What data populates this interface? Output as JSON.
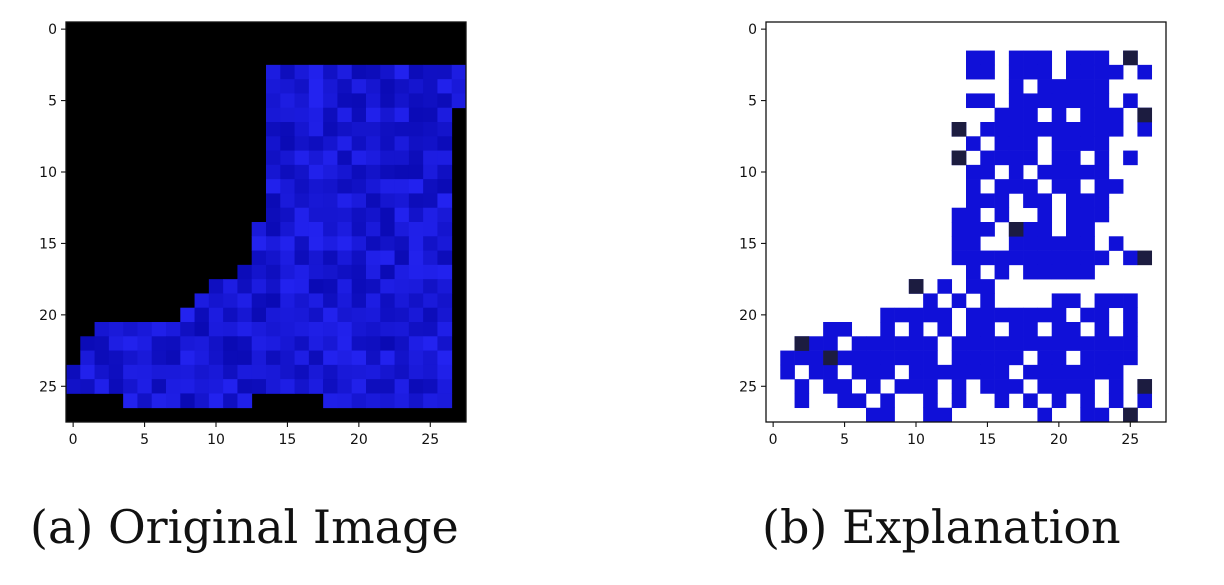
{
  "chart_data": [
    {
      "type": "heatmap",
      "caption": "(a) Original Image",
      "grid_size": 28,
      "xticks": [
        0,
        5,
        10,
        15,
        20,
        25
      ],
      "yticks": [
        0,
        5,
        10,
        15,
        20,
        25
      ],
      "xlim": [
        -0.5,
        27.5
      ],
      "ylim": [
        27.5,
        -0.5
      ],
      "background_color": "#000000",
      "boot_color": "#1a1ae0",
      "boot_rows": [
        [],
        [],
        [],
        [
          [
            14,
            27
          ]
        ],
        [
          [
            14,
            27
          ]
        ],
        [
          [
            14,
            27
          ]
        ],
        [
          [
            14,
            26
          ]
        ],
        [
          [
            14,
            26
          ]
        ],
        [
          [
            14,
            26
          ]
        ],
        [
          [
            14,
            26
          ]
        ],
        [
          [
            14,
            26
          ]
        ],
        [
          [
            14,
            26
          ]
        ],
        [
          [
            14,
            26
          ]
        ],
        [
          [
            14,
            26
          ]
        ],
        [
          [
            13,
            26
          ]
        ],
        [
          [
            13,
            26
          ]
        ],
        [
          [
            13,
            26
          ]
        ],
        [
          [
            12,
            26
          ]
        ],
        [
          [
            10,
            26
          ]
        ],
        [
          [
            9,
            26
          ]
        ],
        [
          [
            8,
            26
          ]
        ],
        [
          [
            2,
            26
          ]
        ],
        [
          [
            1,
            26
          ]
        ],
        [
          [
            1,
            26
          ]
        ],
        [
          [
            0,
            26
          ]
        ],
        [
          [
            0,
            18
          ],
          [
            18,
            26
          ]
        ],
        [
          [
            4,
            12
          ],
          [
            18,
            26
          ]
        ],
        []
      ]
    },
    {
      "type": "heatmap",
      "caption": "(b) Explanation",
      "grid_size": 28,
      "xticks": [
        0,
        5,
        10,
        15,
        20,
        25
      ],
      "yticks": [
        0,
        5,
        10,
        15,
        20,
        25
      ],
      "xlim": [
        -0.5,
        27.5
      ],
      "ylim": [
        27.5,
        -0.5
      ],
      "background_color": "#ffffff",
      "pixel_color": "#1010d8",
      "dark_pixel_color": "#1c1c40",
      "pixels_rows": [
        [],
        [],
        [
          14,
          15,
          17,
          18,
          19,
          21,
          22,
          23,
          25
        ],
        [
          14,
          15,
          17,
          18,
          19,
          21,
          22,
          23,
          24,
          26
        ],
        [
          17,
          19,
          20,
          21,
          22,
          23
        ],
        [
          14,
          15,
          17,
          18,
          19,
          20,
          21,
          22,
          23,
          25
        ],
        [
          16,
          17,
          18,
          20,
          22,
          23,
          24,
          26
        ],
        [
          13,
          15,
          16,
          17,
          18,
          19,
          20,
          21,
          22,
          23,
          24,
          26
        ],
        [
          14,
          16,
          17,
          18,
          20,
          21,
          22,
          23
        ],
        [
          13,
          15,
          16,
          17,
          18,
          20,
          21,
          23,
          25
        ],
        [
          14,
          15,
          17,
          19,
          20,
          21,
          22,
          23
        ],
        [
          14,
          16,
          17,
          18,
          20,
          21,
          23,
          24
        ],
        [
          14,
          15,
          16,
          18,
          19,
          21,
          22,
          23
        ],
        [
          13,
          14,
          16,
          19,
          21,
          22,
          23
        ],
        [
          13,
          14,
          15,
          17,
          18,
          19,
          21,
          22
        ],
        [
          13,
          14,
          17,
          18,
          19,
          20,
          21,
          22,
          24
        ],
        [
          13,
          14,
          15,
          16,
          17,
          18,
          19,
          20,
          21,
          22,
          23,
          25
        ],
        [
          14,
          16,
          18,
          19,
          20,
          21,
          22
        ],
        [
          10,
          12,
          14,
          15
        ],
        [
          11,
          13,
          15,
          20,
          21,
          23,
          24,
          25
        ],
        [
          8,
          9,
          10,
          11,
          12,
          14,
          15,
          16,
          17,
          18,
          19,
          20,
          22,
          23,
          25
        ],
        [
          4,
          5,
          8,
          10,
          12,
          14,
          15,
          17,
          18,
          20,
          21,
          23,
          25
        ],
        [
          2,
          3,
          4,
          6,
          7,
          8,
          9,
          10,
          11,
          13,
          14,
          15,
          16,
          17,
          18,
          19,
          20,
          21,
          22,
          23,
          24,
          25
        ],
        [
          1,
          2,
          3,
          5,
          6,
          7,
          8,
          9,
          10,
          11,
          13,
          14,
          15,
          16,
          17,
          19,
          20,
          22,
          23,
          24,
          25
        ],
        [
          1,
          3,
          4,
          6,
          7,
          8,
          10,
          11,
          12,
          13,
          14,
          15,
          16,
          18,
          19,
          20,
          21,
          22,
          23,
          24
        ],
        [
          2,
          4,
          5,
          7,
          9,
          10,
          11,
          13,
          15,
          16,
          17,
          19,
          20,
          21,
          22,
          24,
          26
        ],
        [
          2,
          5,
          6,
          8,
          11,
          13,
          16,
          18,
          20,
          22,
          24,
          26
        ],
        [
          7,
          8,
          11,
          12,
          19,
          22,
          23,
          25
        ]
      ],
      "dark_pixels": [
        [
          2,
          25
        ],
        [
          6,
          26
        ],
        [
          7,
          13
        ],
        [
          9,
          13
        ],
        [
          14,
          17
        ],
        [
          16,
          26
        ],
        [
          18,
          10
        ],
        [
          22,
          2
        ],
        [
          23,
          4
        ],
        [
          25,
          26
        ],
        [
          27,
          25
        ]
      ]
    }
  ],
  "captions": {
    "a": "(a) Original Image",
    "b": "(b) Explanation"
  }
}
